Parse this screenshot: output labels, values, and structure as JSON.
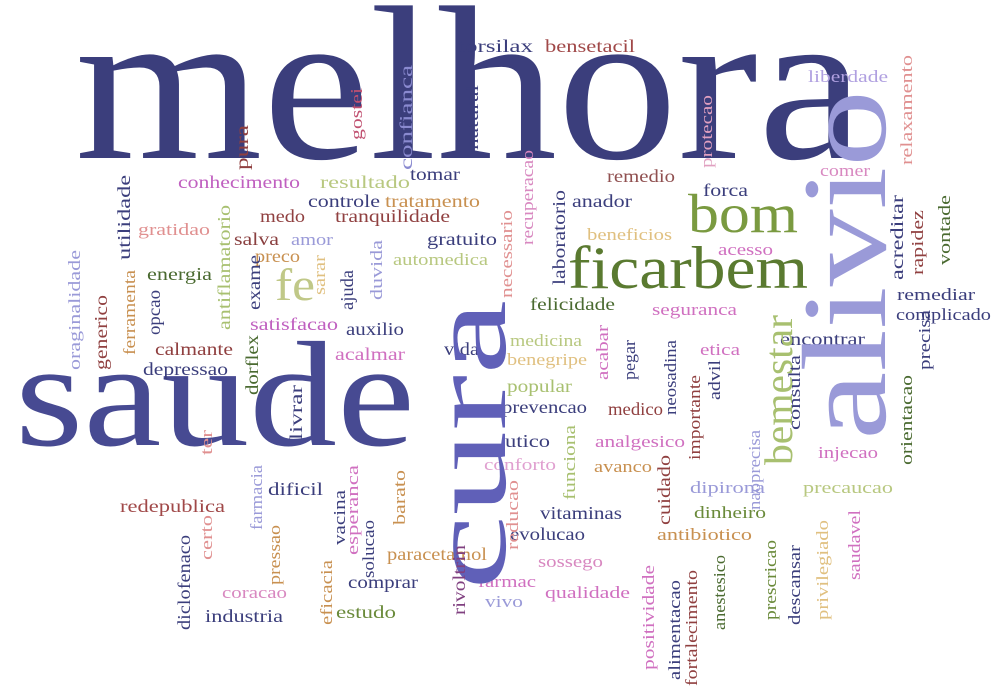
{
  "words": [
    {
      "text": "melhora",
      "color": "#3b3e7c"
    },
    {
      "text": "saude",
      "color": "#474a92"
    },
    {
      "text": "torsilax",
      "color": "#3b3e7c"
    },
    {
      "text": "bensetacil",
      "color": "#a04848"
    },
    {
      "text": "liberdade",
      "color": "#b0a0e0"
    },
    {
      "text": "conhecimento",
      "color": "#c060c0"
    },
    {
      "text": "resultado",
      "color": "#b8c880"
    },
    {
      "text": "tomar",
      "color": "#3b3e7c"
    },
    {
      "text": "remedio",
      "color": "#905050"
    },
    {
      "text": "comer",
      "color": "#d888c0"
    },
    {
      "text": "forca",
      "color": "#3b3e7c"
    },
    {
      "text": "controle",
      "color": "#3b3e7c"
    },
    {
      "text": "tratamento",
      "color": "#c89050"
    },
    {
      "text": "anador",
      "color": "#3b3e7c"
    },
    {
      "text": "bom",
      "color": "#7a9a40"
    },
    {
      "text": "gratidao",
      "color": "#e09090"
    },
    {
      "text": "medo",
      "color": "#904040"
    },
    {
      "text": "tranquilidade",
      "color": "#904040"
    },
    {
      "text": "salva",
      "color": "#8a4040"
    },
    {
      "text": "amor",
      "color": "#9a9ad8"
    },
    {
      "text": "gratuito",
      "color": "#3b3e7c"
    },
    {
      "text": "beneficios",
      "color": "#e0c080"
    },
    {
      "text": "acesso",
      "color": "#d070c0"
    },
    {
      "text": "preco",
      "color": "#c89050"
    },
    {
      "text": "energia",
      "color": "#4a6a30"
    },
    {
      "text": "automedica",
      "color": "#b8c880"
    },
    {
      "text": "ficarbem",
      "color": "#5a7a30"
    },
    {
      "text": "fe",
      "color": "#c0c888"
    },
    {
      "text": "remediar",
      "color": "#3b3e7c"
    },
    {
      "text": "felicidade",
      "color": "#4a6a30"
    },
    {
      "text": "seguranca",
      "color": "#d070c0"
    },
    {
      "text": "complicado",
      "color": "#3b3e7c"
    },
    {
      "text": "satisfacao",
      "color": "#c060c0"
    },
    {
      "text": "auxilio",
      "color": "#3b3e7c"
    },
    {
      "text": "encontrar",
      "color": "#3b3e7c"
    },
    {
      "text": "medicina",
      "color": "#b8c880"
    },
    {
      "text": "calmante",
      "color": "#904040"
    },
    {
      "text": "acalmar",
      "color": "#d070c0"
    },
    {
      "text": "vida",
      "color": "#3b3e7c"
    },
    {
      "text": "benegripe",
      "color": "#e0c080"
    },
    {
      "text": "etica",
      "color": "#d070c0"
    },
    {
      "text": "depressao",
      "color": "#3b3e7c"
    },
    {
      "text": "popular",
      "color": "#a8c070"
    },
    {
      "text": "prevencao",
      "color": "#3b3e7c"
    },
    {
      "text": "medico",
      "color": "#904040"
    },
    {
      "text": "utico",
      "color": "#3b3e7c"
    },
    {
      "text": "analgesico",
      "color": "#d070c0"
    },
    {
      "text": "injecao",
      "color": "#d070c0"
    },
    {
      "text": "conforto",
      "color": "#e0a0d0"
    },
    {
      "text": "avanco",
      "color": "#c89050"
    },
    {
      "text": "dipirona",
      "color": "#9a9ad8"
    },
    {
      "text": "precaucao",
      "color": "#b8c880"
    },
    {
      "text": "dificil",
      "color": "#3b3e7c"
    },
    {
      "text": "redepublica",
      "color": "#a04848"
    },
    {
      "text": "vitaminas",
      "color": "#3b3e7c"
    },
    {
      "text": "dinheiro",
      "color": "#6a8a3a"
    },
    {
      "text": "evolucao",
      "color": "#3b3e7c"
    },
    {
      "text": "antibiotico",
      "color": "#c89050"
    },
    {
      "text": "paracetamol",
      "color": "#c89050"
    },
    {
      "text": "sossego",
      "color": "#d888c0"
    },
    {
      "text": "comprar",
      "color": "#3b3e7c"
    },
    {
      "text": "farmac",
      "color": "#d070c0"
    },
    {
      "text": "qualidade",
      "color": "#d070c0"
    },
    {
      "text": "coracao",
      "color": "#d888c0"
    },
    {
      "text": "vivo",
      "color": "#9a9ad8"
    },
    {
      "text": "industria",
      "color": "#3b3e7c"
    },
    {
      "text": "estudo",
      "color": "#6a8a3a"
    },
    {
      "text": "alivio",
      "color": "#9a9ad8"
    },
    {
      "text": "cura",
      "color": "#6060b8"
    },
    {
      "text": "bemestar",
      "color": "#a8c070"
    },
    {
      "text": "gostei",
      "color": "#c05070"
    },
    {
      "text": "confianca",
      "color": "#8a8ad0"
    },
    {
      "text": "natural",
      "color": "#3b3e7c"
    },
    {
      "text": "pura",
      "color": "#904040"
    },
    {
      "text": "protecao",
      "color": "#e0a0c0"
    },
    {
      "text": "relaxamento",
      "color": "#e09090"
    },
    {
      "text": "recuperacao",
      "color": "#d888c0"
    },
    {
      "text": "laboratorio",
      "color": "#3b3e7c"
    },
    {
      "text": "necessario",
      "color": "#e09090"
    },
    {
      "text": "utilidade",
      "color": "#3b3e7c"
    },
    {
      "text": "antiflamatorio",
      "color": "#a8c070"
    },
    {
      "text": "exame",
      "color": "#3b3e7c"
    },
    {
      "text": "oraginalidade",
      "color": "#9a9ad8"
    },
    {
      "text": "generico",
      "color": "#904040"
    },
    {
      "text": "ferramenta",
      "color": "#c89050"
    },
    {
      "text": "opcao",
      "color": "#3b3e7c"
    },
    {
      "text": "ajuda",
      "color": "#3b3e7c"
    },
    {
      "text": "sarar",
      "color": "#e0c080"
    },
    {
      "text": "duvida",
      "color": "#9a9ad8"
    },
    {
      "text": "acreditar",
      "color": "#3b3e7c"
    },
    {
      "text": "rapidez",
      "color": "#904040"
    },
    {
      "text": "vontade",
      "color": "#4a6a30"
    },
    {
      "text": "dorflex",
      "color": "#4a6a30"
    },
    {
      "text": "livrar",
      "color": "#3b3e7c"
    },
    {
      "text": "ter",
      "color": "#e09090"
    },
    {
      "text": "farmacia",
      "color": "#9a9ad8"
    },
    {
      "text": "vacina",
      "color": "#3b3e7c"
    },
    {
      "text": "esperanca",
      "color": "#d070c0"
    },
    {
      "text": "barato",
      "color": "#c89050"
    },
    {
      "text": "reducao",
      "color": "#e09090"
    },
    {
      "text": "funciona",
      "color": "#a8c070"
    },
    {
      "text": "acabar",
      "color": "#d070c0"
    },
    {
      "text": "pegar",
      "color": "#3b3e7c"
    },
    {
      "text": "cuidado",
      "color": "#904040"
    },
    {
      "text": "neosadina",
      "color": "#3b3e7c"
    },
    {
      "text": "importante",
      "color": "#904040"
    },
    {
      "text": "advil",
      "color": "#3b3e7c"
    },
    {
      "text": "consulta",
      "color": "#3b3e7c"
    },
    {
      "text": "precisa",
      "color": "#3b3e7c"
    },
    {
      "text": "orientacao",
      "color": "#4a6a30"
    },
    {
      "text": "naoprecisa",
      "color": "#9a9ad8"
    },
    {
      "text": "diclofenaco",
      "color": "#3b3e7c"
    },
    {
      "text": "certo",
      "color": "#e09090"
    },
    {
      "text": "pressao",
      "color": "#c89050"
    },
    {
      "text": "eficacia",
      "color": "#c89050"
    },
    {
      "text": "solucao",
      "color": "#3b3e7c"
    },
    {
      "text": "rivoltrin",
      "color": "#804080"
    },
    {
      "text": "positividade",
      "color": "#d070c0"
    },
    {
      "text": "alimentacao",
      "color": "#3b3e7c"
    },
    {
      "text": "fortalecimento",
      "color": "#904040"
    },
    {
      "text": "anestesico",
      "color": "#4a6a30"
    },
    {
      "text": "prescricao",
      "color": "#6a8a3a"
    },
    {
      "text": "descansar",
      "color": "#3b3e7c"
    },
    {
      "text": "privilegiado",
      "color": "#e0c080"
    },
    {
      "text": "saudavel",
      "color": "#d070c0"
    }
  ]
}
